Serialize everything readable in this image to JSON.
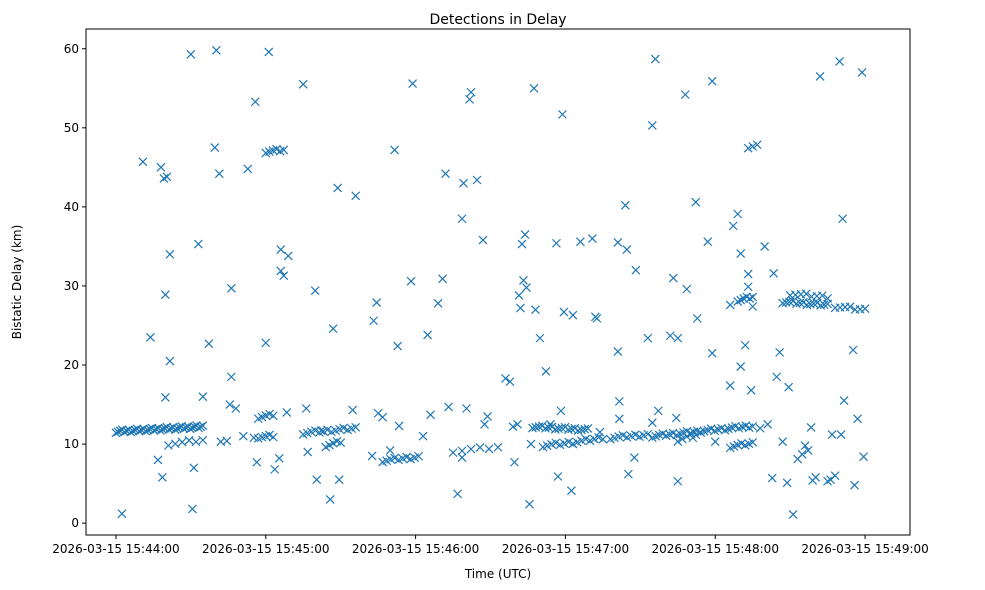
{
  "chart_data": {
    "type": "scatter",
    "title": "Detections in Delay",
    "xlabel": "Time (UTC)",
    "ylabel": "Bistatic Delay (km)",
    "x_unit": "minutes after 2026-03-15 15:44:00",
    "xlim": [
      -0.2,
      5.3
    ],
    "ylim": [
      -1.5,
      62.5
    ],
    "x_ticks": [
      {
        "value": 0,
        "label": "2026-03-15 15:44:00"
      },
      {
        "value": 1,
        "label": "2026-03-15 15:45:00"
      },
      {
        "value": 2,
        "label": "2026-03-15 15:46:00"
      },
      {
        "value": 3,
        "label": "2026-03-15 15:47:00"
      },
      {
        "value": 4,
        "label": "2026-03-15 15:48:00"
      },
      {
        "value": 5,
        "label": "2026-03-15 15:49:00"
      }
    ],
    "y_ticks": [
      {
        "value": 0,
        "label": "0"
      },
      {
        "value": 10,
        "label": "10"
      },
      {
        "value": 20,
        "label": "20"
      },
      {
        "value": 30,
        "label": "30"
      },
      {
        "value": 40,
        "label": "40"
      },
      {
        "value": 50,
        "label": "50"
      },
      {
        "value": 60,
        "label": "60"
      }
    ],
    "marker": "x",
    "color": "#1f77b4",
    "grid": false,
    "tracks": [
      {
        "x0": 0.0,
        "x1": 0.58,
        "y0": 11.6,
        "y1": 12.2,
        "n": 42
      },
      {
        "x0": 0.35,
        "x1": 0.58,
        "y0": 10.0,
        "y1": 10.5,
        "n": 6
      },
      {
        "x0": 0.95,
        "x1": 1.05,
        "y0": 13.4,
        "y1": 13.7,
        "n": 5
      },
      {
        "x0": 0.95,
        "x1": 1.05,
        "y0": 10.9,
        "y1": 11.0,
        "n": 5
      },
      {
        "x0": 1.0,
        "x1": 1.12,
        "y0": 47.0,
        "y1": 47.2,
        "n": 6
      },
      {
        "x0": 1.25,
        "x1": 1.6,
        "y0": 11.4,
        "y1": 12.0,
        "n": 14
      },
      {
        "x0": 1.4,
        "x1": 1.5,
        "y0": 9.8,
        "y1": 10.3,
        "n": 5
      },
      {
        "x0": 1.78,
        "x1": 2.02,
        "y0": 7.9,
        "y1": 8.4,
        "n": 10
      },
      {
        "x0": 2.25,
        "x1": 2.55,
        "y0": 9.1,
        "y1": 9.6,
        "n": 6
      },
      {
        "x0": 2.78,
        "x1": 3.15,
        "y0": 12.2,
        "y1": 11.8,
        "n": 18
      },
      {
        "x0": 2.85,
        "x1": 3.05,
        "y0": 9.8,
        "y1": 10.2,
        "n": 8
      },
      {
        "x0": 3.05,
        "x1": 3.25,
        "y0": 10.2,
        "y1": 10.8,
        "n": 8
      },
      {
        "x0": 3.3,
        "x1": 3.55,
        "y0": 10.8,
        "y1": 11.2,
        "n": 10
      },
      {
        "x0": 3.58,
        "x1": 4.25,
        "y0": 11.0,
        "y1": 12.3,
        "n": 30
      },
      {
        "x0": 3.75,
        "x1": 3.9,
        "y0": 10.5,
        "y1": 11.5,
        "n": 6
      },
      {
        "x0": 4.1,
        "x1": 4.25,
        "y0": 9.7,
        "y1": 10.1,
        "n": 7
      },
      {
        "x0": 4.15,
        "x1": 4.25,
        "y0": 28.2,
        "y1": 28.6,
        "n": 6
      },
      {
        "x0": 4.22,
        "x1": 4.28,
        "y0": 47.6,
        "y1": 47.8,
        "n": 3
      },
      {
        "x0": 4.45,
        "x1": 4.75,
        "y0": 28.0,
        "y1": 27.6,
        "n": 14
      },
      {
        "x0": 4.5,
        "x1": 4.75,
        "y0": 29.0,
        "y1": 28.6,
        "n": 8
      },
      {
        "x0": 4.8,
        "x1": 5.0,
        "y0": 27.4,
        "y1": 27.0,
        "n": 7
      }
    ],
    "scattered_points": [
      [
        0.04,
        1.2
      ],
      [
        0.18,
        45.7
      ],
      [
        0.3,
        45.0
      ],
      [
        0.32,
        43.6
      ],
      [
        0.34,
        43.8
      ],
      [
        0.36,
        34.0
      ],
      [
        0.23,
        23.5
      ],
      [
        0.33,
        28.9
      ],
      [
        0.36,
        20.5
      ],
      [
        0.28,
        8.0
      ],
      [
        0.31,
        5.8
      ],
      [
        0.33,
        15.9
      ],
      [
        0.5,
        59.3
      ],
      [
        0.52,
        7.0
      ],
      [
        0.51,
        1.8
      ],
      [
        0.55,
        35.3
      ],
      [
        0.58,
        16.0
      ],
      [
        0.62,
        22.7
      ],
      [
        0.67,
        59.8
      ],
      [
        0.66,
        47.5
      ],
      [
        0.69,
        44.2
      ],
      [
        0.7,
        10.3
      ],
      [
        0.74,
        10.4
      ],
      [
        0.77,
        29.7
      ],
      [
        0.77,
        18.5
      ],
      [
        0.8,
        14.5
      ],
      [
        0.76,
        15.0
      ],
      [
        0.85,
        11.0
      ],
      [
        0.88,
        44.8
      ],
      [
        0.92,
        10.8
      ],
      [
        0.93,
        53.3
      ],
      [
        0.94,
        7.7
      ],
      [
        1.0,
        22.8
      ],
      [
        1.02,
        59.6
      ],
      [
        1.06,
        6.8
      ],
      [
        1.1,
        34.6
      ],
      [
        1.1,
        31.9
      ],
      [
        1.12,
        31.3
      ],
      [
        1.15,
        33.8
      ],
      [
        1.09,
        8.2
      ],
      [
        1.14,
        14.0
      ],
      [
        1.25,
        55.5
      ],
      [
        1.27,
        14.5
      ],
      [
        1.28,
        9.0
      ],
      [
        1.33,
        29.4
      ],
      [
        1.34,
        5.5
      ],
      [
        1.37,
        11.7
      ],
      [
        1.43,
        3.0
      ],
      [
        1.45,
        24.6
      ],
      [
        1.48,
        42.4
      ],
      [
        1.49,
        5.5
      ],
      [
        1.58,
        14.3
      ],
      [
        1.6,
        41.4
      ],
      [
        1.72,
        25.6
      ],
      [
        1.74,
        27.9
      ],
      [
        1.75,
        13.9
      ],
      [
        1.78,
        13.4
      ],
      [
        1.71,
        8.5
      ],
      [
        1.83,
        9.2
      ],
      [
        1.86,
        47.2
      ],
      [
        1.88,
        22.4
      ],
      [
        1.89,
        12.3
      ],
      [
        1.97,
        30.6
      ],
      [
        1.98,
        55.6
      ],
      [
        2.05,
        11.0
      ],
      [
        2.08,
        23.8
      ],
      [
        2.1,
        13.7
      ],
      [
        2.15,
        27.8
      ],
      [
        2.18,
        30.9
      ],
      [
        2.2,
        44.2
      ],
      [
        2.22,
        14.7
      ],
      [
        2.28,
        3.7
      ],
      [
        2.31,
        8.3
      ],
      [
        2.31,
        38.5
      ],
      [
        2.32,
        43.0
      ],
      [
        2.34,
        14.5
      ],
      [
        2.36,
        53.6
      ],
      [
        2.37,
        54.5
      ],
      [
        2.41,
        43.4
      ],
      [
        2.45,
        35.8
      ],
      [
        2.46,
        12.5
      ],
      [
        2.48,
        13.5
      ],
      [
        2.6,
        18.3
      ],
      [
        2.63,
        17.9
      ],
      [
        2.65,
        12.2
      ],
      [
        2.66,
        7.7
      ],
      [
        2.68,
        12.5
      ],
      [
        2.69,
        28.8
      ],
      [
        2.7,
        27.2
      ],
      [
        2.71,
        35.3
      ],
      [
        2.73,
        36.5
      ],
      [
        2.72,
        30.7
      ],
      [
        2.74,
        29.8
      ],
      [
        2.76,
        2.4
      ],
      [
        2.77,
        10.0
      ],
      [
        2.79,
        55.0
      ],
      [
        2.8,
        27.0
      ],
      [
        2.83,
        23.4
      ],
      [
        2.87,
        19.2
      ],
      [
        2.9,
        12.5
      ],
      [
        2.94,
        35.4
      ],
      [
        2.95,
        5.9
      ],
      [
        2.97,
        14.2
      ],
      [
        2.98,
        51.7
      ],
      [
        2.99,
        26.7
      ],
      [
        3.05,
        26.3
      ],
      [
        3.04,
        4.1
      ],
      [
        3.1,
        35.6
      ],
      [
        3.18,
        36.0
      ],
      [
        3.2,
        26.1
      ],
      [
        3.21,
        25.9
      ],
      [
        3.23,
        11.5
      ],
      [
        3.35,
        21.7
      ],
      [
        3.35,
        35.5
      ],
      [
        3.36,
        15.4
      ],
      [
        3.36,
        13.2
      ],
      [
        3.4,
        40.2
      ],
      [
        3.41,
        34.6
      ],
      [
        3.42,
        6.2
      ],
      [
        3.46,
        8.3
      ],
      [
        3.47,
        32.0
      ],
      [
        3.55,
        23.4
      ],
      [
        3.58,
        12.7
      ],
      [
        3.6,
        58.7
      ],
      [
        3.58,
        50.3
      ],
      [
        3.62,
        14.2
      ],
      [
        3.7,
        23.7
      ],
      [
        3.72,
        31.0
      ],
      [
        3.74,
        13.3
      ],
      [
        3.75,
        5.3
      ],
      [
        3.75,
        23.4
      ],
      [
        3.8,
        54.2
      ],
      [
        3.81,
        29.6
      ],
      [
        3.85,
        10.8
      ],
      [
        3.87,
        40.6
      ],
      [
        3.88,
        25.9
      ],
      [
        3.95,
        35.6
      ],
      [
        3.98,
        21.5
      ],
      [
        3.98,
        55.9
      ],
      [
        4.0,
        10.3
      ],
      [
        4.1,
        17.4
      ],
      [
        4.1,
        27.6
      ],
      [
        4.12,
        37.6
      ],
      [
        4.15,
        39.1
      ],
      [
        4.17,
        34.1
      ],
      [
        4.17,
        19.8
      ],
      [
        4.2,
        22.5
      ],
      [
        4.22,
        31.5
      ],
      [
        4.22,
        29.9
      ],
      [
        4.25,
        27.4
      ],
      [
        4.24,
        16.8
      ],
      [
        4.3,
        12.0
      ],
      [
        4.33,
        35.0
      ],
      [
        4.35,
        12.5
      ],
      [
        4.38,
        5.7
      ],
      [
        4.39,
        31.6
      ],
      [
        4.41,
        18.5
      ],
      [
        4.43,
        21.6
      ],
      [
        4.45,
        10.3
      ],
      [
        4.48,
        5.1
      ],
      [
        4.49,
        17.2
      ],
      [
        4.52,
        1.1
      ],
      [
        4.55,
        8.1
      ],
      [
        4.58,
        8.7
      ],
      [
        4.6,
        9.8
      ],
      [
        4.62,
        9.2
      ],
      [
        4.64,
        12.1
      ],
      [
        4.65,
        5.4
      ],
      [
        4.67,
        5.8
      ],
      [
        4.7,
        56.5
      ],
      [
        4.75,
        5.3
      ],
      [
        4.77,
        5.5
      ],
      [
        4.78,
        11.2
      ],
      [
        4.8,
        6.0
      ],
      [
        4.83,
        58.4
      ],
      [
        4.84,
        11.2
      ],
      [
        4.85,
        38.5
      ],
      [
        4.86,
        15.5
      ],
      [
        4.92,
        21.9
      ],
      [
        4.93,
        4.8
      ],
      [
        4.95,
        13.2
      ],
      [
        4.98,
        57.0
      ],
      [
        4.99,
        8.4
      ]
    ]
  }
}
